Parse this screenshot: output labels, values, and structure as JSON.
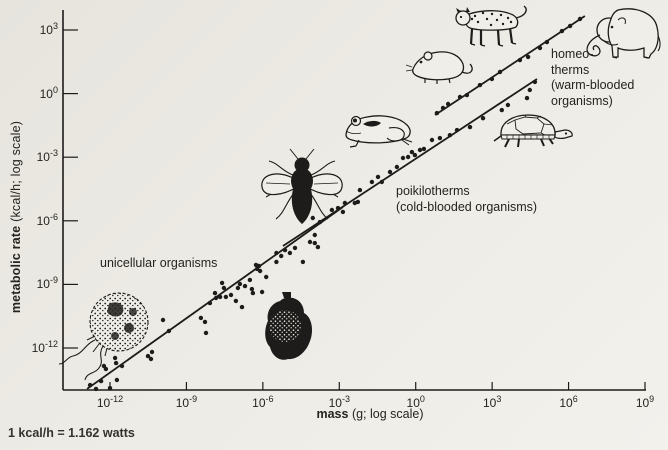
{
  "figure": {
    "background_color": "#edebe5",
    "ink_color": "#1d1c1a"
  },
  "axes": {
    "x": {
      "label_bold": "mass",
      "label_rest": " (g; log scale)",
      "tick_base": "10",
      "tick_exponents": [
        -12,
        -9,
        -6,
        -3,
        0,
        3,
        6,
        9
      ]
    },
    "y": {
      "label_bold": "metabolic rate",
      "label_rest": " (kcal/h; log scale)",
      "tick_base": "10",
      "tick_exponents": [
        3,
        0,
        -3,
        -6,
        -9,
        -12
      ]
    }
  },
  "annotations": {
    "unicellular": "unicellular organisms",
    "poikilotherms": [
      "poikilotherms",
      "(cold-blooded organisms)"
    ],
    "homeotherms": [
      "homeo-",
      "therms",
      "(warm-blooded",
      "organisms)"
    ]
  },
  "footnote": "1 kcal/h = 1.162 watts",
  "illustrations": [
    "protozoan",
    "ciliate",
    "fly",
    "frog",
    "rat",
    "leopard",
    "turtle",
    "elephant"
  ],
  "chart_data": {
    "type": "scatter",
    "title": "",
    "xlabel": "mass (g; log scale)",
    "ylabel": "metabolic rate (kcal/h; log scale)",
    "x_scale": "log10",
    "y_scale": "log10",
    "xlim_exponents": [
      -13.8,
      9
    ],
    "ylim_exponents": [
      -14,
      4
    ],
    "x_tick_exponents": [
      -12,
      -9,
      -6,
      -3,
      0,
      3,
      6,
      9
    ],
    "y_tick_exponents": [
      3,
      0,
      -3,
      -6,
      -9,
      -12
    ],
    "grid": false,
    "legend": "inline text annotations",
    "note": "1 kcal/h = 1.162 watts",
    "series": [
      {
        "name": "unicellular organisms",
        "points": [
          [
            -12.78,
            -13.75
          ],
          [
            -12.55,
            -13.93
          ],
          [
            -12.35,
            -13.56
          ],
          [
            -12.24,
            -12.85
          ],
          [
            -12.16,
            -12.99
          ],
          [
            -12.0,
            -13.89
          ],
          [
            -11.8,
            -12.47
          ],
          [
            -11.76,
            -12.71
          ],
          [
            -11.73,
            -13.51
          ],
          [
            -11.53,
            -12.85
          ],
          [
            -10.51,
            -12.38
          ],
          [
            -10.39,
            -12.52
          ],
          [
            -10.35,
            -12.19
          ],
          [
            -9.92,
            -10.68
          ],
          [
            -9.69,
            -11.2
          ],
          [
            -8.43,
            -10.58
          ],
          [
            -8.27,
            -10.77
          ],
          [
            -8.23,
            -11.29
          ],
          [
            -8.08,
            -9.88
          ],
          [
            -7.88,
            -9.41
          ],
          [
            -7.84,
            -9.64
          ],
          [
            -7.68,
            -9.59
          ],
          [
            -7.6,
            -8.93
          ],
          [
            -7.53,
            -9.17
          ],
          [
            -7.45,
            -9.59
          ],
          [
            -7.25,
            -9.5
          ],
          [
            -7.06,
            -9.78
          ],
          [
            -6.98,
            -9.17
          ],
          [
            -6.9,
            -8.98
          ],
          [
            -6.82,
            -10.07
          ],
          [
            -6.7,
            -9.08
          ],
          [
            -6.51,
            -8.79
          ],
          [
            -6.43,
            -9.22
          ],
          [
            -6.39,
            -9.41
          ],
          [
            -6.27,
            -8.08
          ],
          [
            -6.23,
            -8.27
          ],
          [
            -6.15,
            -8.13
          ],
          [
            -6.11,
            -8.37
          ],
          [
            -6.03,
            -9.36
          ],
          [
            -5.87,
            -8.65
          ]
        ]
      },
      {
        "name": "poikilotherms (cold-blooded organisms)",
        "points": [
          [
            -5.47,
            -7.52
          ],
          [
            -5.47,
            -7.94
          ],
          [
            -5.28,
            -7.66
          ],
          [
            -5.13,
            -7.38
          ],
          [
            -4.94,
            -7.52
          ],
          [
            -4.74,
            -7.28
          ],
          [
            -4.43,
            -7.94
          ],
          [
            -4.15,
            -7.0
          ],
          [
            -3.96,
            -7.05
          ],
          [
            -3.96,
            -6.67
          ],
          [
            -3.84,
            -7.24
          ],
          [
            -4.04,
            -5.87
          ],
          [
            -3.76,
            -6.06
          ],
          [
            -3.29,
            -5.49
          ],
          [
            -3.05,
            -5.4
          ],
          [
            -2.86,
            -5.58
          ],
          [
            -2.78,
            -5.16
          ],
          [
            -2.39,
            -5.16
          ],
          [
            -2.27,
            -5.11
          ],
          [
            -2.19,
            -4.55
          ],
          [
            -1.72,
            -4.17
          ],
          [
            -1.48,
            -3.93
          ],
          [
            -1.33,
            -4.17
          ],
          [
            -1.01,
            -3.7
          ],
          [
            -0.74,
            -3.46
          ],
          [
            -0.5,
            -3.04
          ],
          [
            -0.3,
            -2.99
          ],
          [
            -0.15,
            -2.76
          ],
          [
            -0.03,
            -2.9
          ],
          [
            0.17,
            -2.66
          ],
          [
            0.32,
            -2.61
          ],
          [
            0.64,
            -2.19
          ],
          [
            0.95,
            -2.1
          ],
          [
            1.34,
            -1.96
          ],
          [
            1.62,
            -1.72
          ],
          [
            2.13,
            -1.58
          ],
          [
            2.64,
            -1.16
          ],
          [
            3.38,
            -0.78
          ],
          [
            3.62,
            -0.54
          ],
          [
            4.37,
            -0.21
          ],
          [
            4.48,
            0.17
          ],
          [
            4.68,
            0.55
          ]
        ]
      },
      {
        "name": "homeotherms (warm-blooded organisms)",
        "points": [
          [
            0.83,
            -0.92
          ],
          [
            1.07,
            -0.68
          ],
          [
            1.27,
            -0.49
          ],
          [
            1.74,
            -0.16
          ],
          [
            2.01,
            -0.07
          ],
          [
            2.52,
            0.4
          ],
          [
            2.99,
            0.69
          ],
          [
            3.31,
            1.02
          ],
          [
            4.09,
            1.58
          ],
          [
            4.41,
            1.73
          ],
          [
            4.88,
            2.15
          ],
          [
            5.15,
            2.43
          ],
          [
            5.74,
            2.95
          ],
          [
            6.06,
            3.19
          ],
          [
            6.45,
            3.52
          ]
        ]
      }
    ],
    "regression_lines": [
      {
        "name": "unicellular",
        "from": [
          -12.9,
          -13.93
        ],
        "to": [
          -2.86,
          -5.35
        ]
      },
      {
        "name": "poikilotherms",
        "from": [
          -5.21,
          -7.19
        ],
        "to": [
          4.76,
          0.69
        ]
      },
      {
        "name": "homeotherms",
        "from": [
          0.76,
          -1.01
        ],
        "to": [
          6.64,
          3.66
        ]
      }
    ]
  }
}
